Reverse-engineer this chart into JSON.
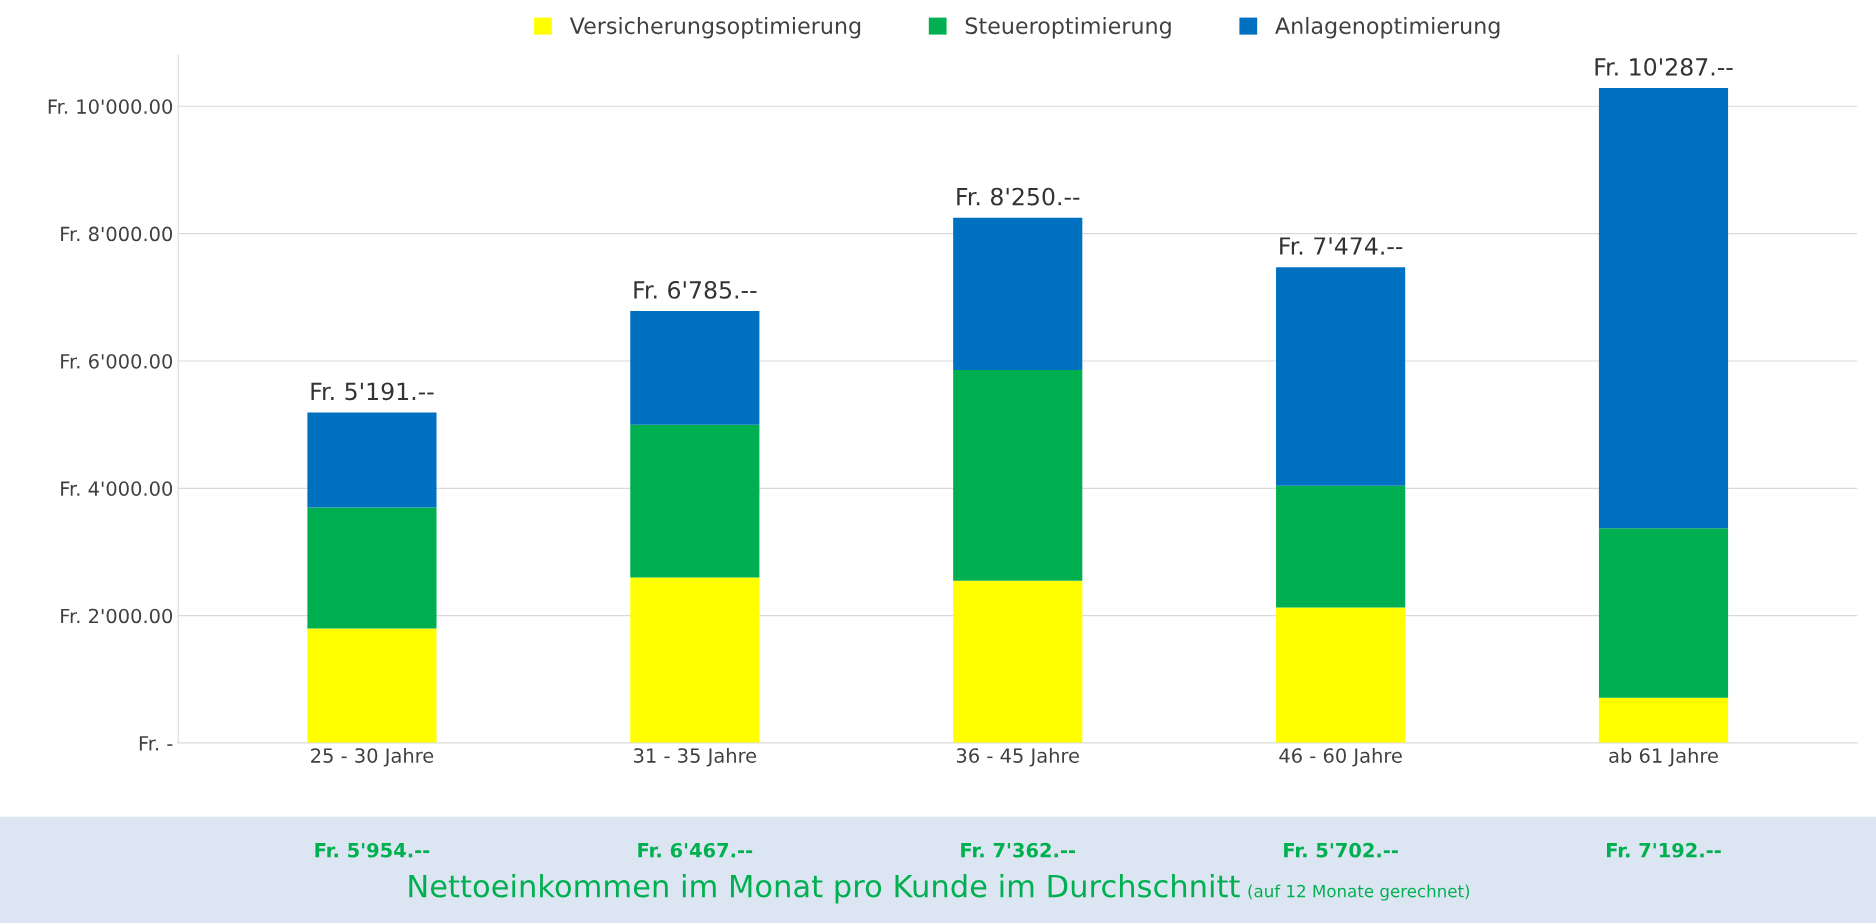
{
  "chart_data": {
    "type": "bar",
    "stacked": true,
    "categories": [
      "25 - 30 Jahre",
      "31 - 35 Jahre",
      "36 - 45 Jahre",
      "46 - 60 Jahre",
      "ab 61 Jahre"
    ],
    "series": [
      {
        "name": "Versicherungsoptimierung",
        "color": "#ffff00",
        "values": [
          1800,
          2600,
          2550,
          2130,
          710
        ]
      },
      {
        "name": "Steueroptimierung",
        "color": "#00b050",
        "values": [
          1900,
          2400,
          3310,
          1910,
          2665
        ]
      },
      {
        "name": "Anlagenoptimierung",
        "color": "#0070c0",
        "values": [
          1491,
          1785,
          2390,
          3434,
          6912
        ]
      }
    ],
    "totals": [
      "Fr. 5'191.--",
      "Fr. 6'785.--",
      "Fr. 8'250.--",
      "Fr. 7'474.--",
      "Fr. 10'287.--"
    ],
    "ylim": [
      0,
      10800
    ],
    "yticks": [
      {
        "value": 0,
        "label": "Fr. -"
      },
      {
        "value": 2000,
        "label": "Fr. 2'000.00"
      },
      {
        "value": 4000,
        "label": "Fr. 4'000.00"
      },
      {
        "value": 6000,
        "label": "Fr. 6'000.00"
      },
      {
        "value": 8000,
        "label": "Fr. 8'000.00"
      },
      {
        "value": 10000,
        "label": "Fr. 10'000.00"
      }
    ],
    "grid": "y",
    "legend": "top",
    "annotations": [
      "Fr. 5'954.--",
      "Fr. 6'467.--",
      "Fr. 7'362.--",
      "Fr. 5'702.--",
      "Fr. 7'192.--",
      "Nettoeinkommen im Monat pro Kunde im Durchschnitt",
      "(auf 12 Monate gerechnet)"
    ]
  }
}
